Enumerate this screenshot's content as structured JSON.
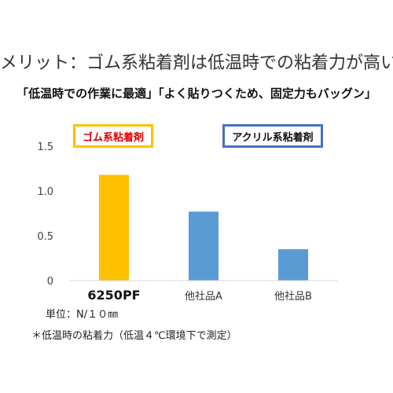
{
  "header": {
    "title": "メリット：ゴム系粘着剤は低温時での粘着力が高い",
    "subtitle": "「低温時での作業に最適」「よく貼りつくため、固定力もバッグン」"
  },
  "legend": {
    "gom": "ゴム系粘着剤",
    "acryl": "アクリル系粘着剤"
  },
  "footer": {
    "unit": "単位：N/１０㎜",
    "note": "＊低温時の粘着力（低温４℃環境下で測定）"
  },
  "chart_data": {
    "type": "bar",
    "categories": [
      "6250PF",
      "他社品A",
      "他社品B"
    ],
    "values": [
      1.18,
      0.77,
      0.35
    ],
    "bar_colors": [
      "#ffc000",
      "#5b9bd5",
      "#5b9bd5"
    ],
    "yticks": [
      "0",
      "0.5",
      "1.0",
      "1.5"
    ],
    "ytick_values": [
      0,
      0.5,
      1.0,
      1.5
    ],
    "ylim": [
      0,
      1.5
    ],
    "grid": false
  }
}
